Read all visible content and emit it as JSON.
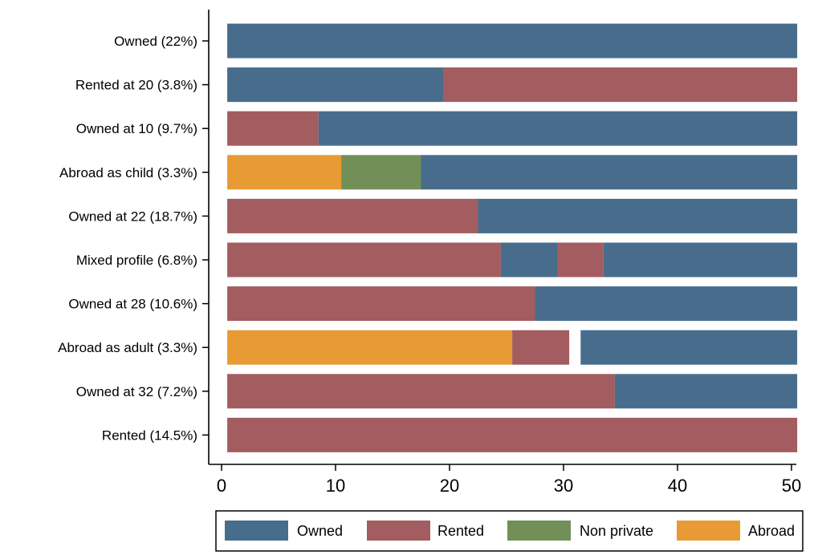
{
  "chart_data": {
    "type": "bar",
    "orientation": "horizontal",
    "stacked": true,
    "xlim": [
      0,
      50
    ],
    "xticks": [
      0,
      10,
      20,
      30,
      40,
      50
    ],
    "categories": [
      "Owned (22%)",
      "Rented at 20 (3.8%)",
      "Owned at 10 (9.7%)",
      "Abroad as child (3.3%)",
      "Owned at 22 (18.7%)",
      "Mixed profile (6.8%)",
      "Owned at 28 (10.6%)",
      "Abroad as adult (3.3%)",
      "Owned at 32 (7.2%)",
      "Rented (14.5%)"
    ],
    "segments": [
      [
        {
          "status": "Owned",
          "start": 0.5,
          "end": 50.5
        }
      ],
      [
        {
          "status": "Owned",
          "start": 0.5,
          "end": 19.5
        },
        {
          "status": "Rented",
          "start": 19.5,
          "end": 50.5
        }
      ],
      [
        {
          "status": "Rented",
          "start": 0.5,
          "end": 8.5
        },
        {
          "status": "Owned",
          "start": 8.5,
          "end": 50.5
        }
      ],
      [
        {
          "status": "Abroad",
          "start": 0.5,
          "end": 10.5
        },
        {
          "status": "Non private",
          "start": 10.5,
          "end": 17.5
        },
        {
          "status": "Owned",
          "start": 17.5,
          "end": 50.5
        }
      ],
      [
        {
          "status": "Rented",
          "start": 0.5,
          "end": 22.5
        },
        {
          "status": "Owned",
          "start": 22.5,
          "end": 50.5
        }
      ],
      [
        {
          "status": "Rented",
          "start": 0.5,
          "end": 24.5
        },
        {
          "status": "Owned",
          "start": 24.5,
          "end": 29.5
        },
        {
          "status": "Rented",
          "start": 29.5,
          "end": 33.5
        },
        {
          "status": "Owned",
          "start": 33.5,
          "end": 50.5
        }
      ],
      [
        {
          "status": "Rented",
          "start": 0.5,
          "end": 27.5
        },
        {
          "status": "Owned",
          "start": 27.5,
          "end": 50.5
        }
      ],
      [
        {
          "status": "Abroad",
          "start": 0.5,
          "end": 25.5
        },
        {
          "status": "Rented",
          "start": 25.5,
          "end": 30.5
        },
        {
          "status": "Owned",
          "start": 31.5,
          "end": 50.5
        }
      ],
      [
        {
          "status": "Rented",
          "start": 0.5,
          "end": 34.5
        },
        {
          "status": "Owned",
          "start": 34.5,
          "end": 50.5
        }
      ],
      [
        {
          "status": "Rented",
          "start": 0.5,
          "end": 50.5
        }
      ]
    ],
    "legend": {
      "placement": "bottom",
      "items": [
        "Owned",
        "Rented",
        "Non private",
        "Abroad"
      ]
    },
    "colors": {
      "Owned": "#486d8c",
      "Rented": "#a35c60",
      "Non private": "#728f58",
      "Abroad": "#e89a35"
    },
    "title": "",
    "xlabel": "",
    "ylabel": "",
    "grid": false
  }
}
